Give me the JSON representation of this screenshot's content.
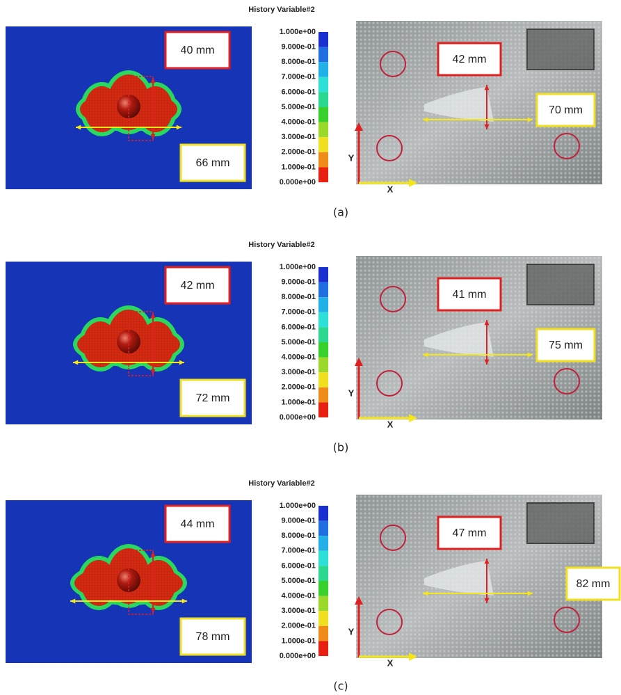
{
  "panels": [
    {
      "colorbar_title": "History Variable#2",
      "colorbar_labels": [
        "1.000e+00",
        "9.000e-01",
        "8.000e-01",
        "7.000e-01",
        "6.000e-01",
        "5.000e-01",
        "4.000e-01",
        "3.000e-01",
        "2.000e-01",
        "1.000e-01",
        "0.000e+00"
      ],
      "simulation": {
        "height_label": "40 mm",
        "width_label": "66 mm"
      },
      "photo": {
        "height_label": "42 mm",
        "width_label": "70 mm",
        "y_axis": "Y",
        "x_axis": "X"
      },
      "caption": "(a)"
    },
    {
      "colorbar_title": "History Variable#2",
      "colorbar_labels": [
        "1.000e+00",
        "9.000e-01",
        "8.000e-01",
        "7.000e-01",
        "6.000e-01",
        "5.000e-01",
        "4.000e-01",
        "3.000e-01",
        "2.000e-01",
        "1.000e-01",
        "0.000e+00"
      ],
      "simulation": {
        "height_label": "42 mm",
        "width_label": "72 mm"
      },
      "photo": {
        "height_label": "41 mm",
        "width_label": "75 mm",
        "y_axis": "Y",
        "x_axis": "X"
      },
      "caption": "(b)"
    },
    {
      "colorbar_title": "History Variable#2",
      "colorbar_labels": [
        "1.000e+00",
        "9.000e-01",
        "8.000e-01",
        "7.000e-01",
        "6.000e-01",
        "5.000e-01",
        "4.000e-01",
        "3.000e-01",
        "2.000e-01",
        "1.000e-01",
        "0.000e+00"
      ],
      "simulation": {
        "height_label": "44 mm",
        "width_label": "78 mm"
      },
      "photo": {
        "height_label": "47 mm",
        "width_label": "82 mm",
        "y_axis": "Y",
        "x_axis": "X"
      },
      "caption": "(c)"
    }
  ]
}
